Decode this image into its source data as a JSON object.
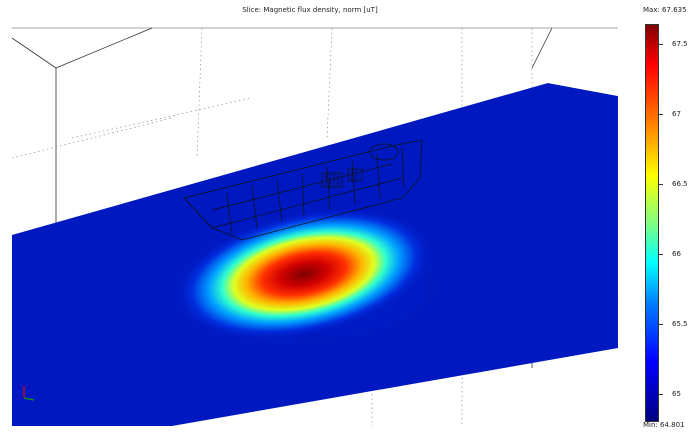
{
  "plot": {
    "title": "Slice: Magnetic flux density, norm [uT]"
  },
  "colorbar": {
    "max_label": "Max: 67.635",
    "min_label": "Min: 64.801",
    "ticks": [
      "67.5",
      "67",
      "66.5",
      "66",
      "65.5",
      "65"
    ],
    "colors": [
      "#00007f",
      "#0000ff",
      "#0080ff",
      "#00ffff",
      "#80ff80",
      "#ffff00",
      "#ff8000",
      "#ff0000",
      "#800000"
    ]
  },
  "axes_triad": {
    "icon": "axis-triad-icon"
  }
}
